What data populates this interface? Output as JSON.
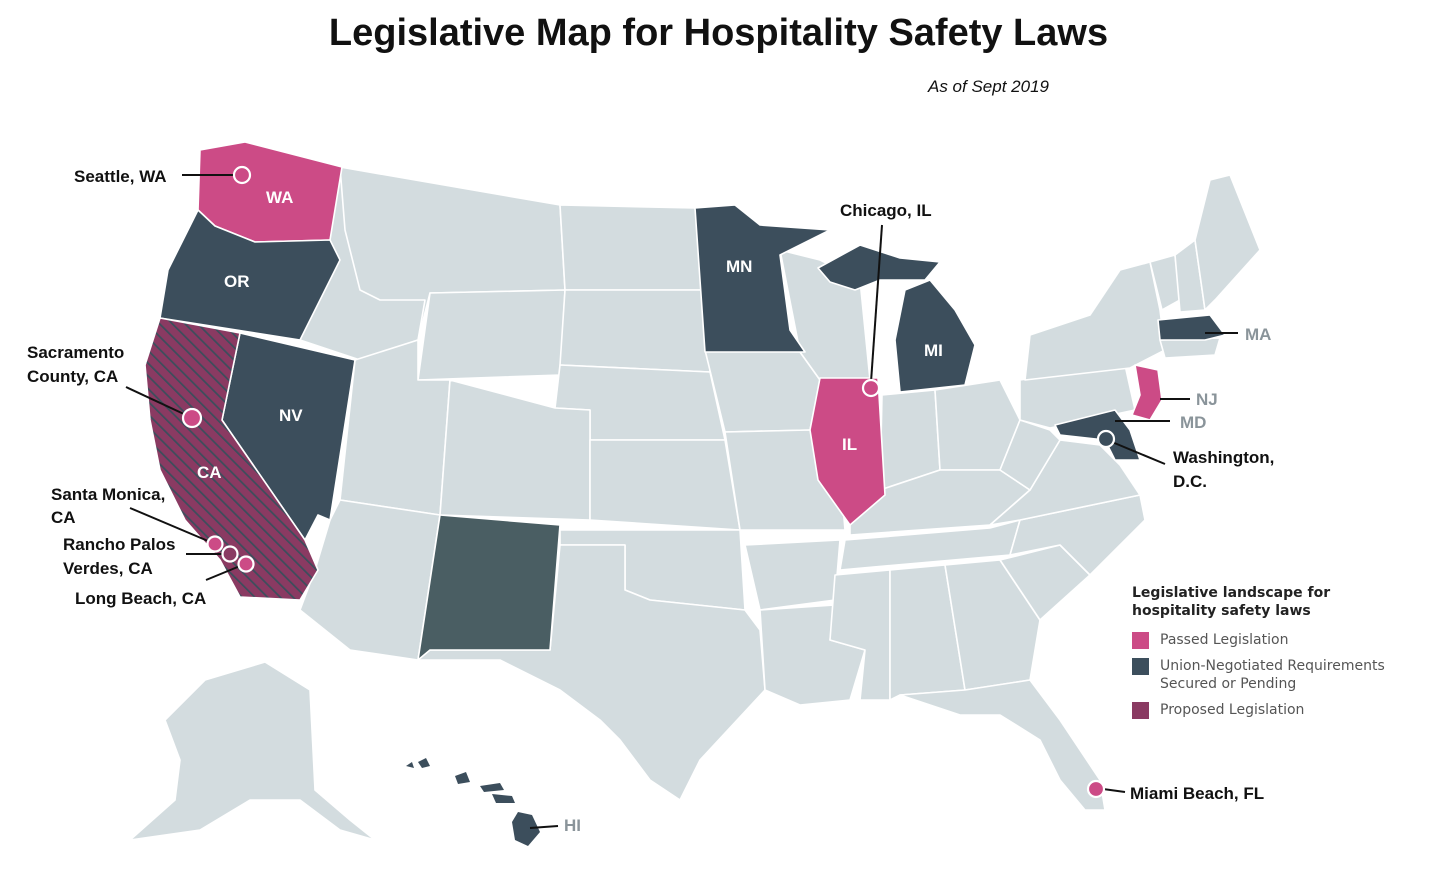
{
  "title": "Legislative Map for Hospitality Safety Laws",
  "subtitle": "As of Sept 2019",
  "colors": {
    "passed": "#cc4b86",
    "union": "#3c4e5c",
    "proposed": "#8a3a62",
    "proposed_hatch": "#3c4e5c",
    "new_mexico": "#4a5e63",
    "other_states": "#d3dcdf",
    "state_border": "#ffffff"
  },
  "state_labels": {
    "wa": "WA",
    "or": "OR",
    "ca": "CA",
    "nv": "NV",
    "mn": "MN",
    "mi": "MI",
    "il": "IL",
    "ma": "MA",
    "nj": "NJ",
    "md": "MD",
    "hi": "HI"
  },
  "city_labels": {
    "seattle": "Seattle, WA",
    "sacramento_1": "Sacramento",
    "sacramento_2": "County, CA",
    "santa_monica_1": "Santa Monica,",
    "santa_monica_2": "CA",
    "rancho_1": "Rancho Palos",
    "rancho_2": "Verdes, CA",
    "long_beach": "Long Beach, CA",
    "chicago": "Chicago, IL",
    "washington_1": "Washington,",
    "washington_2": "D.C.",
    "miami": "Miami Beach, FL"
  },
  "legend": {
    "title": "Legislative landscape for hospitality safety laws",
    "items": [
      {
        "label": "Passed Legislation",
        "color": "#cc4b86"
      },
      {
        "label": "Union-Negotiated Requirements Secured or Pending",
        "color": "#3c4e5c"
      },
      {
        "label": "Proposed Legislation",
        "color": "#8a3a62"
      }
    ]
  }
}
